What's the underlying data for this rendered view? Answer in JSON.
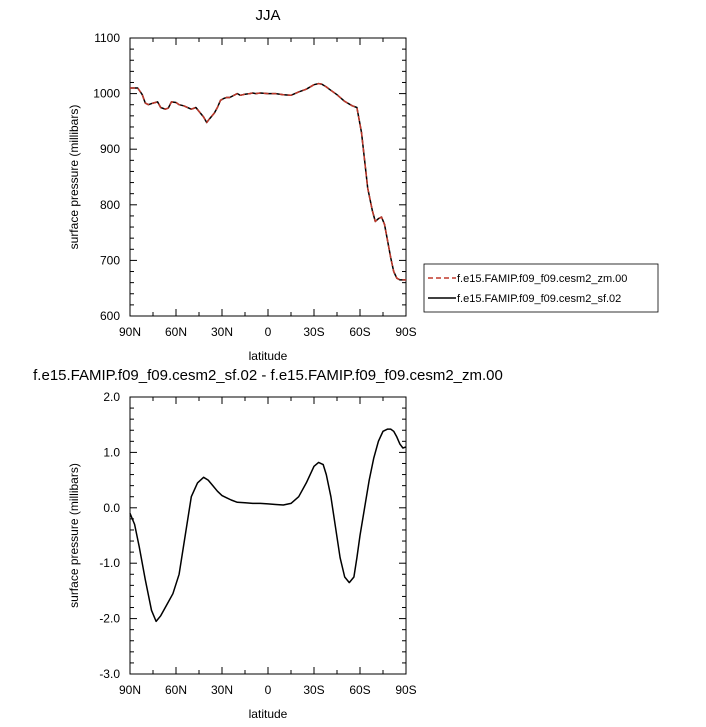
{
  "chart_data": [
    {
      "type": "line",
      "title": "JJA",
      "xlabel": "latitude",
      "ylabel": "surface pressure (millibars)",
      "xlim": [
        90,
        -90
      ],
      "ylim": [
        600,
        1100
      ],
      "x_ticks": [
        90,
        60,
        30,
        0,
        -30,
        -60,
        -90
      ],
      "x_tick_labels": [
        "90N",
        "60N",
        "30N",
        "0",
        "30S",
        "60S",
        "90S"
      ],
      "y_ticks": [
        600,
        700,
        800,
        900,
        1000,
        1100
      ],
      "y_tick_labels": [
        "600",
        "700",
        "800",
        "900",
        "1000",
        "1100"
      ],
      "legend_position": "right",
      "x": [
        90,
        85,
        82,
        80,
        78,
        75,
        72,
        70,
        67,
        65,
        63,
        60,
        58,
        55,
        50,
        47,
        45,
        42,
        40,
        38,
        35,
        33,
        31,
        29,
        27,
        25,
        20,
        18,
        15,
        12,
        10,
        8,
        5,
        0,
        -5,
        -10,
        -15,
        -20,
        -25,
        -30,
        -33,
        -35,
        -38,
        -40,
        -45,
        -50,
        -55,
        -58,
        -61,
        -63,
        -65,
        -68,
        -70,
        -72,
        -74,
        -76,
        -78,
        -80,
        -82,
        -84,
        -86,
        -88,
        -90
      ],
      "series": [
        {
          "name": "f.e15.FAMIP.f09_f09.cesm2_zm.00",
          "color": "#c0392b",
          "dash": "dashed",
          "values": [
            1010,
            1010,
            998,
            983,
            980,
            983,
            985,
            975,
            972,
            974,
            985,
            984,
            980,
            978,
            972,
            975,
            968,
            958,
            948,
            955,
            965,
            975,
            988,
            991,
            993,
            993,
            1000,
            997,
            999,
            1000,
            1001,
            1000,
            1001,
            1000,
            1000,
            998,
            997,
            1003,
            1008,
            1016,
            1018,
            1017,
            1012,
            1008,
            998,
            986,
            978,
            975,
            930,
            880,
            830,
            790,
            770,
            775,
            778,
            765,
            735,
            705,
            680,
            668,
            665,
            665,
            665
          ]
        },
        {
          "name": "f.e15.FAMIP.f09_f09.cesm2_sf.02",
          "color": "#000000",
          "dash": "solid",
          "values": [
            1010,
            1010,
            998,
            983,
            980,
            983,
            985,
            975,
            972,
            974,
            985,
            984,
            980,
            978,
            972,
            975,
            968,
            958,
            948,
            955,
            965,
            975,
            988,
            991,
            993,
            993,
            1000,
            997,
            999,
            1000,
            1001,
            1000,
            1001,
            1000,
            1000,
            998,
            997,
            1003,
            1008,
            1016,
            1018,
            1017,
            1012,
            1008,
            998,
            986,
            978,
            975,
            930,
            880,
            830,
            790,
            770,
            775,
            778,
            765,
            735,
            705,
            680,
            668,
            665,
            665,
            665
          ]
        }
      ]
    },
    {
      "type": "line",
      "title": "f.e15.FAMIP.f09_f09.cesm2_sf.02 - f.e15.FAMIP.f09_f09.cesm2_zm.00",
      "xlabel": "latitude",
      "ylabel": "surface pressure (millibars)",
      "xlim": [
        90,
        -90
      ],
      "ylim": [
        -3.0,
        2.0
      ],
      "x_ticks": [
        90,
        60,
        30,
        0,
        -30,
        -60,
        -90
      ],
      "x_tick_labels": [
        "90N",
        "60N",
        "30N",
        "0",
        "30S",
        "60S",
        "90S"
      ],
      "y_ticks": [
        -3.0,
        -2.0,
        -1.0,
        0.0,
        1.0,
        2.0
      ],
      "y_tick_labels": [
        "-3.0",
        "-2.0",
        "-1.0",
        "0.0",
        "1.0",
        "2.0"
      ],
      "x": [
        90,
        87,
        84,
        80,
        76,
        73,
        70,
        66,
        62,
        58,
        54,
        50,
        46,
        42,
        39,
        36,
        33,
        30,
        27,
        24,
        20,
        15,
        10,
        5,
        0,
        -5,
        -10,
        -15,
        -20,
        -25,
        -30,
        -33,
        -36,
        -38,
        -41,
        -44,
        -47,
        -50,
        -53,
        -56,
        -58,
        -60,
        -63,
        -66,
        -69,
        -72,
        -75,
        -78,
        -80,
        -82,
        -84,
        -86,
        -88,
        -90
      ],
      "series": [
        {
          "name": "",
          "color": "#000000",
          "dash": "solid",
          "values": [
            -0.1,
            -0.3,
            -0.7,
            -1.3,
            -1.85,
            -2.05,
            -1.95,
            -1.75,
            -1.55,
            -1.2,
            -0.5,
            0.2,
            0.45,
            0.55,
            0.5,
            0.4,
            0.3,
            0.22,
            0.18,
            0.14,
            0.1,
            0.09,
            0.08,
            0.08,
            0.07,
            0.06,
            0.05,
            0.08,
            0.2,
            0.45,
            0.75,
            0.82,
            0.78,
            0.6,
            0.2,
            -0.35,
            -0.9,
            -1.25,
            -1.35,
            -1.25,
            -0.9,
            -0.5,
            0.0,
            0.5,
            0.9,
            1.2,
            1.38,
            1.42,
            1.42,
            1.38,
            1.28,
            1.15,
            1.08,
            1.1
          ]
        }
      ]
    }
  ]
}
